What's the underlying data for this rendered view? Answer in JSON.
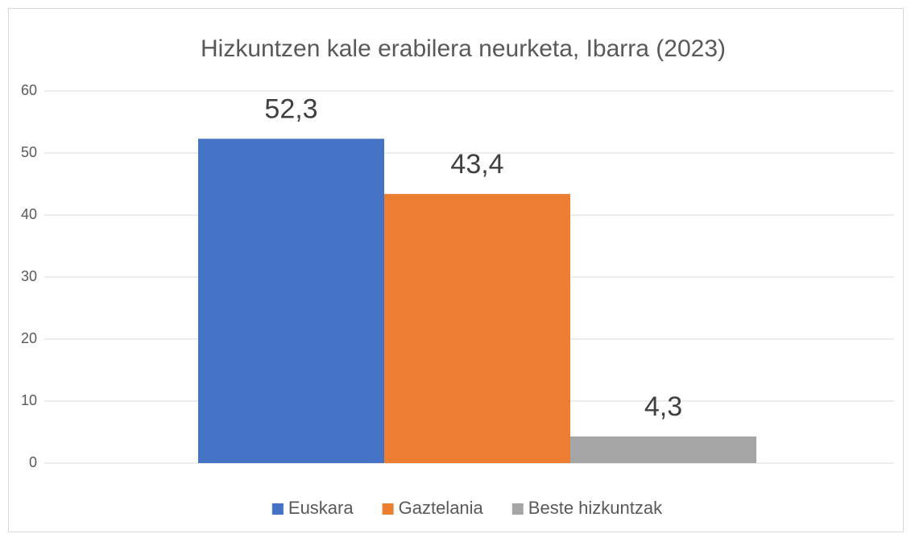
{
  "chart_data": {
    "type": "bar",
    "title": "Hizkuntzen kale erabilera neurketa, Ibarra (2023)",
    "categories": [
      null
    ],
    "series": [
      {
        "name": "Euskara",
        "color": "#4472c4",
        "values": [
          52.3
        ],
        "value_labels": [
          "52,3"
        ]
      },
      {
        "name": "Gaztelania",
        "color": "#ed7d31",
        "values": [
          43.4
        ],
        "value_labels": [
          "43,4"
        ]
      },
      {
        "name": "Beste hizkuntzak",
        "color": "#a5a5a5",
        "values": [
          4.3
        ],
        "value_labels": [
          "4,3"
        ]
      }
    ],
    "ylim": [
      0,
      60
    ],
    "yticks": [
      0,
      10,
      20,
      30,
      40,
      50,
      60
    ],
    "grid": true,
    "legend": "bottom"
  }
}
